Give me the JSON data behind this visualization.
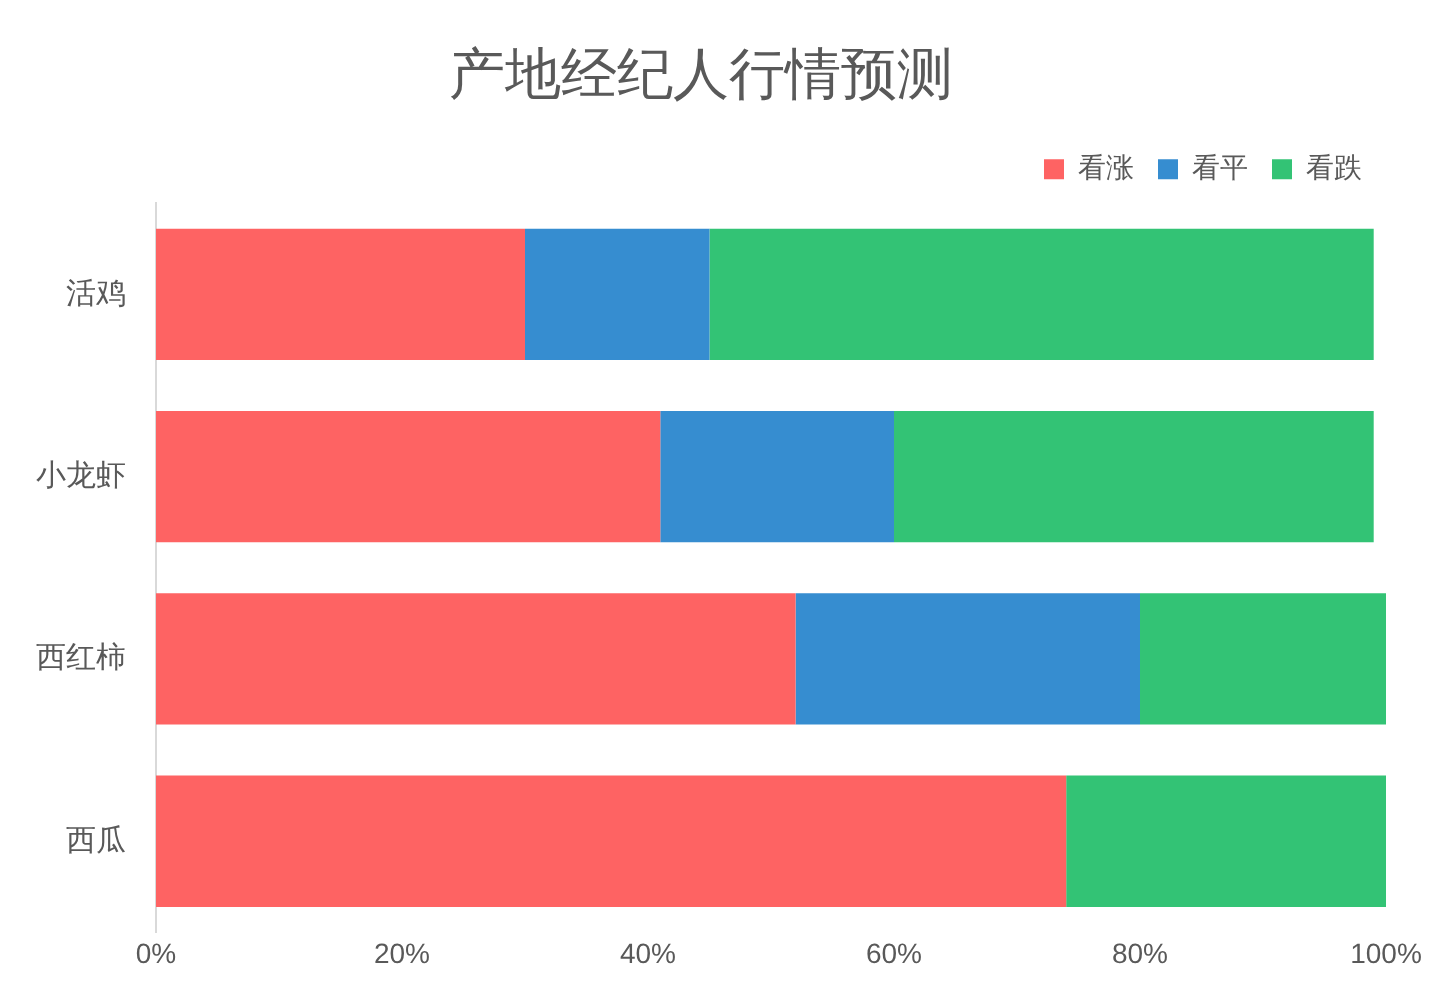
{
  "chart_data": {
    "type": "bar",
    "orientation": "horizontal",
    "stacked": true,
    "title": "产地经纪人行情预测",
    "categories": [
      "活鸡",
      "小龙虾",
      "西红柿",
      "西瓜"
    ],
    "series": [
      {
        "name": "看涨",
        "color": "#fe6363",
        "values": [
          30,
          41,
          52,
          74
        ]
      },
      {
        "name": "看平",
        "color": "#368dd0",
        "values": [
          15,
          19,
          28,
          0
        ]
      },
      {
        "name": "看跌",
        "color": "#33c375",
        "values": [
          54,
          39,
          20,
          26
        ]
      }
    ],
    "xlim": [
      0,
      100
    ],
    "xticks": [
      {
        "value": 0,
        "label": "0%"
      },
      {
        "value": 20,
        "label": "20%"
      },
      {
        "value": 40,
        "label": "40%"
      },
      {
        "value": 60,
        "label": "60%"
      },
      {
        "value": 80,
        "label": "80%"
      },
      {
        "value": 100,
        "label": "100%"
      }
    ],
    "grid": false,
    "legend": "top right"
  }
}
